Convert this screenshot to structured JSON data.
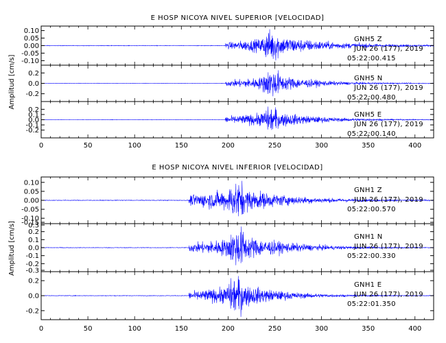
{
  "chart_data": [
    {
      "type": "line",
      "title": "E HOSP NICOYA NIVEL SUPERIOR [VELOCIDAD]",
      "ylabel": "Amplitud [cm/s]",
      "xlim": [
        0,
        420
      ],
      "x_ticks": [
        "0",
        "50",
        "100",
        "150",
        "200",
        "250",
        "300",
        "350",
        "400"
      ],
      "trace_color": "#0000ff",
      "traces": [
        {
          "station": "GNH5",
          "component": "Z",
          "date": "JUN 26 (177), 2019",
          "time": "05:22:00.415",
          "ylim": [
            -0.13,
            0.13
          ],
          "y_ticks": [
            "0.10",
            "0.05",
            "0.00",
            "-0.05",
            "-0.10"
          ],
          "y_tick_values": [
            0.1,
            0.05,
            0.0,
            -0.05,
            -0.1
          ],
          "envelope": {
            "onset": 197,
            "peak": 248,
            "decay": 55,
            "peak_amp": 0.11,
            "noise": 0.002,
            "pre_amp": 0.02
          }
        },
        {
          "station": "GNH5",
          "component": "N",
          "date": "JUN 26 (177), 2019",
          "time": "05:22:00.480",
          "ylim": [
            -0.35,
            0.35
          ],
          "y_ticks": [
            "0.2",
            "0.0",
            "-0.2"
          ],
          "y_tick_values": [
            0.2,
            0.0,
            -0.2
          ],
          "envelope": {
            "onset": 197,
            "peak": 248,
            "decay": 40,
            "peak_amp": 0.28,
            "noise": 0.004,
            "pre_amp": 0.05
          }
        },
        {
          "station": "GNH5",
          "component": "E",
          "date": "JUN 26 (177), 2019",
          "time": "05:22:00.140",
          "ylim": [
            -0.35,
            0.35
          ],
          "y_ticks": [
            "0.2",
            "0.1",
            "0.0",
            "-0.1",
            "-0.2"
          ],
          "y_tick_values": [
            0.2,
            0.1,
            0.0,
            -0.1,
            -0.2
          ],
          "envelope": {
            "onset": 197,
            "peak": 247,
            "decay": 45,
            "peak_amp": 0.25,
            "noise": 0.004,
            "pre_amp": 0.06
          }
        }
      ]
    },
    {
      "type": "line",
      "title": "E HOSP NICOYA NIVEL INFERIOR [VELOCIDAD]",
      "ylabel": "Amplitud [cm/s]",
      "xlim": [
        0,
        420
      ],
      "x_ticks": [
        "0",
        "50",
        "100",
        "150",
        "200",
        "250",
        "300",
        "350",
        "400"
      ],
      "trace_color": "#0000ff",
      "traces": [
        {
          "station": "GNH1",
          "component": "Z",
          "date": "JUN 26 (177), 2019",
          "time": "05:22:00.570",
          "ylim": [
            -0.13,
            0.13
          ],
          "y_ticks": [
            "0.10",
            "0.05",
            "0.00",
            "-0.05",
            "-0.10",
            "-0.15"
          ],
          "y_tick_values": [
            0.1,
            0.05,
            0.0,
            -0.05,
            -0.1,
            -0.15
          ],
          "envelope": {
            "onset": 158,
            "peak": 211,
            "decay": 50,
            "peak_amp": 0.11,
            "noise": 0.002,
            "pre_amp": 0.03
          }
        },
        {
          "station": "GNH1",
          "component": "N",
          "date": "JUN 26 (177), 2019",
          "time": "05:22:00.330",
          "ylim": [
            -0.3,
            0.3
          ],
          "y_ticks": [
            "0.3",
            "0.2",
            "0.1",
            "0.0",
            "-0.1",
            "-0.2",
            "-0.3"
          ],
          "y_tick_values": [
            0.3,
            0.2,
            0.1,
            0.0,
            -0.1,
            -0.2,
            -0.3
          ],
          "envelope": {
            "onset": 158,
            "peak": 212,
            "decay": 48,
            "peak_amp": 0.26,
            "noise": 0.004,
            "pre_amp": 0.05
          }
        },
        {
          "station": "GNH1",
          "component": "E",
          "date": "JUN 26 (177), 2019",
          "time": "05:22:01.350",
          "ylim": [
            -0.32,
            0.32
          ],
          "y_ticks": [
            "0.2",
            "0.0",
            "-0.2"
          ],
          "y_tick_values": [
            0.2,
            0.0,
            -0.2
          ],
          "envelope": {
            "onset": 158,
            "peak": 210,
            "decay": 42,
            "peak_amp": 0.26,
            "noise": 0.004,
            "pre_amp": 0.05
          }
        }
      ]
    }
  ]
}
